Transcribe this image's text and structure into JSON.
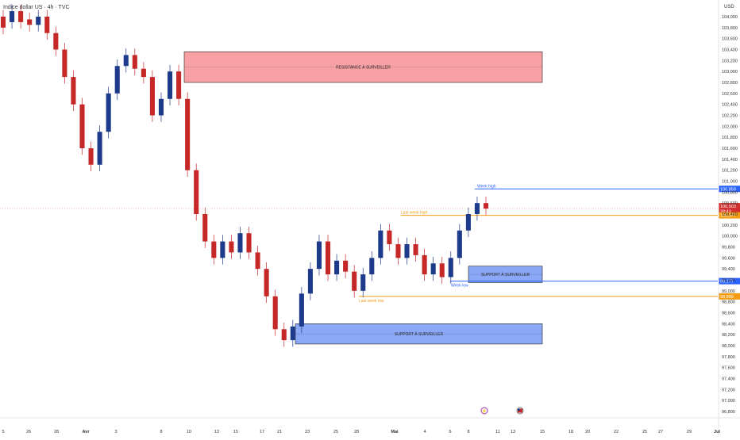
{
  "header": {
    "symbol_title": "Indice dollar US · 4h · TVC",
    "currency": "USD"
  },
  "chart_data": {
    "type": "candlestick",
    "y_axis": {
      "min": 96.8,
      "max": 104.0,
      "ticks": [
        "104,000",
        "103,800",
        "103,600",
        "103,400",
        "103,200",
        "103,000",
        "102,800",
        "102,600",
        "102,400",
        "102,200",
        "102,000",
        "101,800",
        "101,600",
        "101,400",
        "101,200",
        "101,000",
        "100,800",
        "100,600",
        "100,400",
        "100,200",
        "100,000",
        "99,800",
        "99,600",
        "99,400",
        "99,200",
        "99,000",
        "98,800",
        "98,600",
        "98,400",
        "98,200",
        "98,000",
        "97,800",
        "97,600",
        "97,400",
        "97,200",
        "97,000",
        "96,800"
      ]
    },
    "x_axis": {
      "labels": [
        {
          "label": "5"
        },
        {
          "label": "26"
        },
        {
          "label": "28"
        },
        {
          "label": "Avr",
          "bold": true
        },
        {
          "label": "3"
        },
        {
          "label": "8"
        },
        {
          "label": "10"
        },
        {
          "label": "13"
        },
        {
          "label": "15"
        },
        {
          "label": "17"
        },
        {
          "label": "21"
        },
        {
          "label": "23"
        },
        {
          "label": "25"
        },
        {
          "label": "28"
        },
        {
          "label": "Mai",
          "bold": true
        },
        {
          "label": "4"
        },
        {
          "label": "6"
        },
        {
          "label": "8"
        },
        {
          "label": "11"
        },
        {
          "label": "13"
        },
        {
          "label": "15"
        },
        {
          "label": "18"
        },
        {
          "label": "20"
        },
        {
          "label": "22"
        },
        {
          "label": "25"
        },
        {
          "label": "27"
        },
        {
          "label": "29"
        },
        {
          "label": "Jul",
          "bold": true
        }
      ]
    },
    "path_points": [
      [
        104.0,
        103.8
      ],
      [
        103.9,
        104.1
      ],
      [
        104.1,
        103.9
      ],
      [
        103.95,
        103.85
      ],
      [
        103.85,
        104.0
      ],
      [
        104.0,
        103.7
      ],
      [
        103.7,
        103.4
      ],
      [
        103.4,
        102.9
      ],
      [
        102.9,
        102.4
      ],
      [
        102.4,
        101.6
      ],
      [
        101.6,
        101.3
      ],
      [
        101.3,
        101.9
      ],
      [
        101.9,
        102.6
      ],
      [
        102.6,
        103.1
      ],
      [
        103.1,
        103.3
      ],
      [
        103.3,
        103.05
      ],
      [
        103.05,
        102.9
      ],
      [
        102.9,
        102.2
      ],
      [
        102.2,
        102.5
      ],
      [
        102.5,
        103.0
      ],
      [
        103.0,
        102.5
      ],
      [
        102.5,
        101.2
      ],
      [
        101.2,
        100.4
      ],
      [
        100.4,
        99.9
      ],
      [
        99.9,
        99.6
      ],
      [
        99.6,
        99.9
      ],
      [
        99.9,
        99.7
      ],
      [
        99.7,
        100.05
      ],
      [
        100.05,
        99.7
      ],
      [
        99.7,
        99.4
      ],
      [
        99.4,
        98.9
      ],
      [
        98.9,
        98.3
      ],
      [
        98.3,
        98.1
      ],
      [
        98.1,
        98.35
      ],
      [
        98.35,
        98.95
      ],
      [
        98.95,
        99.4
      ],
      [
        99.4,
        99.9
      ],
      [
        99.9,
        99.3
      ],
      [
        99.3,
        99.55
      ],
      [
        99.55,
        99.35
      ],
      [
        99.35,
        99.0
      ],
      [
        99.0,
        99.3
      ],
      [
        99.3,
        99.6
      ],
      [
        99.6,
        100.1
      ],
      [
        100.1,
        99.85
      ],
      [
        99.85,
        99.6
      ],
      [
        99.6,
        99.85
      ],
      [
        99.85,
        99.65
      ],
      [
        99.65,
        99.3
      ],
      [
        99.3,
        99.5
      ],
      [
        99.5,
        99.25
      ],
      [
        99.25,
        99.6
      ],
      [
        99.6,
        100.1
      ],
      [
        100.1,
        100.4
      ],
      [
        100.4,
        100.6
      ],
      [
        100.6,
        100.5
      ]
    ],
    "zones": [
      {
        "label": "RESISTANCE À SURVEILLER",
        "top": 103.36,
        "bottom": 102.8,
        "color": "#f7a1a5",
        "border": "#d44"
      },
      {
        "label": "SUPPORT À SURVEILLER",
        "top": 99.45,
        "bottom": 99.15,
        "color": "#8aa8f5",
        "border": "#2a52c8"
      },
      {
        "label": "SUPPORT À SURVEILLER",
        "top": 98.4,
        "bottom": 98.03,
        "color": "#8aa8f5",
        "border": "#2a52c8"
      }
    ],
    "levels": [
      {
        "label": "Week high",
        "price": 100.859,
        "tag": "100,859",
        "color": "#2962ff"
      },
      {
        "label": "Last week high",
        "price": 100.377,
        "tag": "100,377",
        "color": "#f39c12"
      },
      {
        "label": "Week low",
        "price": 99.177,
        "tag": "99,177",
        "color": "#2962ff"
      },
      {
        "label": "Last week low",
        "price": 98.899,
        "tag": "98,899",
        "color": "#f39c12"
      }
    ],
    "current_price": {
      "price": 100.5,
      "tag": "100,503",
      "countdown": "28:43",
      "color": "#d32f2f"
    },
    "colors": {
      "up": "#1e3a8a",
      "down": "#c62828"
    }
  }
}
